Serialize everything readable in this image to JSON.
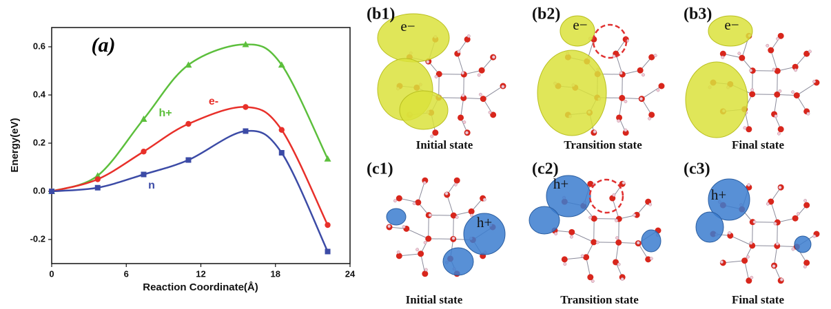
{
  "chart_data": {
    "type": "line",
    "title": "(a)",
    "x_label": "Reaction Coordinate(Å)",
    "y_label": "Energy(eV)",
    "x": [
      0,
      3.7,
      7.4,
      11,
      15.6,
      18.5,
      22.2
    ],
    "series": [
      {
        "name": "h+",
        "color": "#5cbf3c",
        "marker": "triangle",
        "values": [
          0,
          0.065,
          0.3,
          0.525,
          0.61,
          0.525,
          0.135
        ]
      },
      {
        "name": "e-",
        "color": "#e8302a",
        "marker": "circle",
        "values": [
          0,
          0.05,
          0.165,
          0.28,
          0.35,
          0.255,
          -0.14
        ]
      },
      {
        "name": "n",
        "color": "#3c4ba6",
        "marker": "square",
        "values": [
          0,
          0.015,
          0.07,
          0.13,
          0.25,
          0.16,
          -0.25
        ]
      }
    ],
    "xlim": [
      0,
      24
    ],
    "xticks": [
      0,
      6,
      12,
      18,
      24
    ],
    "ylim": [
      -0.3,
      0.68
    ],
    "yticks": [
      -0.2,
      {
        "value": 0,
        "label": "0.0"
      },
      0.2,
      0.4,
      0.6
    ]
  },
  "panels": [
    {
      "label": "(b1)",
      "carrier": "e−",
      "caption": "Initial state"
    },
    {
      "label": "(b2)",
      "carrier": "e−",
      "caption": "Transition state"
    },
    {
      "label": "(b3)",
      "carrier": "e−",
      "caption": "Final state"
    },
    {
      "label": "(c1)",
      "carrier": "h+",
      "caption": "Initial state"
    },
    {
      "label": "(c2)",
      "carrier": "h+",
      "caption": "Transition state"
    },
    {
      "label": "(c3)",
      "carrier": "h+",
      "caption": "Final state"
    }
  ]
}
